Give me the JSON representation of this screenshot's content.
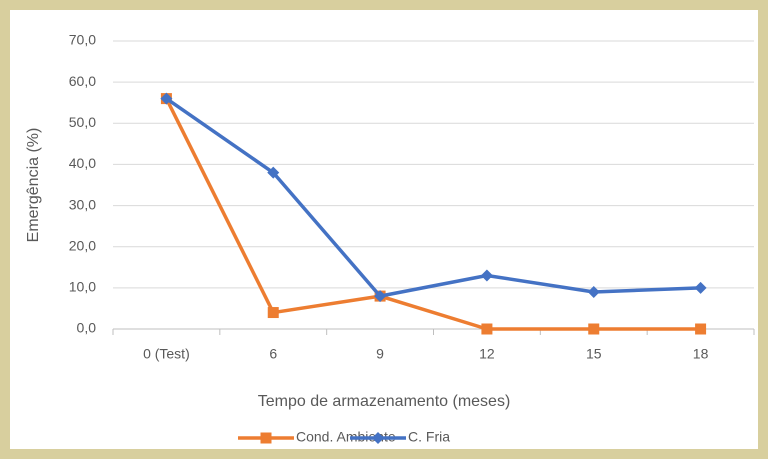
{
  "chart_data": {
    "type": "line",
    "x_label": "Tempo de armazenamento (meses)",
    "y_label": "Emergência (%)",
    "categories": [
      "0 (Test)",
      "6",
      "9",
      "12",
      "15",
      "18"
    ],
    "series": [
      {
        "name": "Cond. Ambiente",
        "color": "#ed7d31",
        "marker": "square",
        "values": [
          56,
          4,
          8,
          0,
          0,
          0
        ]
      },
      {
        "name": "C. Fria",
        "color": "#4472c4",
        "marker": "diamond",
        "values": [
          56,
          38,
          8,
          13,
          9,
          10
        ]
      }
    ],
    "ylim": [
      0,
      70
    ],
    "yticks": [
      {
        "value": 0,
        "label": "0,0"
      },
      {
        "value": 10,
        "label": "10,0"
      },
      {
        "value": 20,
        "label": "20,0"
      },
      {
        "value": 30,
        "label": "30,0"
      },
      {
        "value": 40,
        "label": "40,0"
      },
      {
        "value": 50,
        "label": "50,0"
      },
      {
        "value": 60,
        "label": "60,0"
      },
      {
        "value": 70,
        "label": "70,0"
      }
    ],
    "grid": true,
    "legend": "bottom"
  }
}
